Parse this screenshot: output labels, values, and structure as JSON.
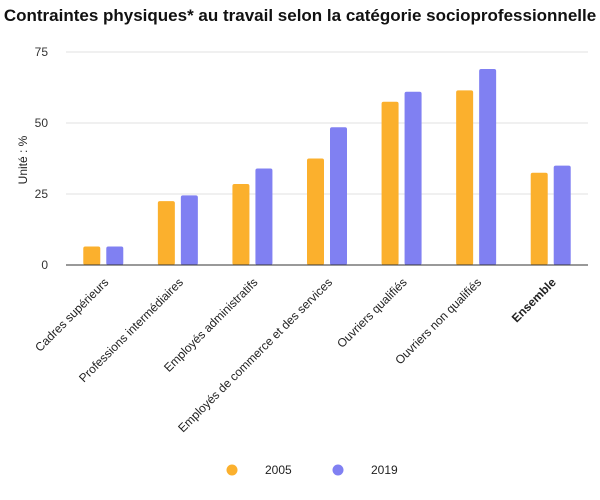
{
  "chart_data": {
    "type": "bar",
    "title": "Contraintes physiques* au travail selon la catégorie socioprofessionnelle",
    "ylabel": "Unité : %",
    "xlabel": "",
    "ylim": [
      0,
      75
    ],
    "yticks": [
      0,
      25,
      50,
      75
    ],
    "grid": true,
    "legend_position": "bottom",
    "categories": [
      "Cadres supérieurs",
      "Professions intermédiaires",
      "Employés administratifs",
      "Employés de commerce et des services",
      "Ouvriers qualifiés",
      "Ouvriers non qualifiés",
      "Ensemble"
    ],
    "emphasized_category": "Ensemble",
    "series": [
      {
        "name": "2005",
        "color": "#FBB02D",
        "values": [
          6.5,
          22.5,
          28.5,
          37.5,
          57.5,
          61.5,
          32.5
        ]
      },
      {
        "name": "2019",
        "color": "#8080F2",
        "values": [
          6.5,
          24.5,
          34.0,
          48.5,
          61.0,
          69.0,
          35.0
        ]
      }
    ]
  }
}
